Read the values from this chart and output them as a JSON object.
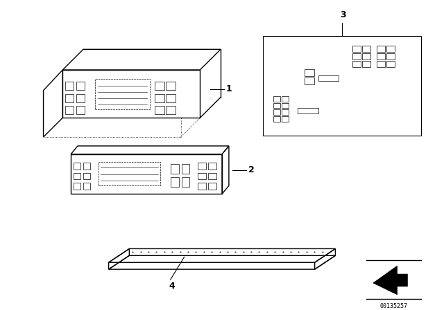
{
  "bg_color": "#ffffff",
  "line_color": "#000000",
  "part_number": "00135257",
  "labels": [
    "1",
    "2",
    "3",
    "4"
  ],
  "figsize": [
    6.4,
    4.48
  ],
  "dpi": 100
}
